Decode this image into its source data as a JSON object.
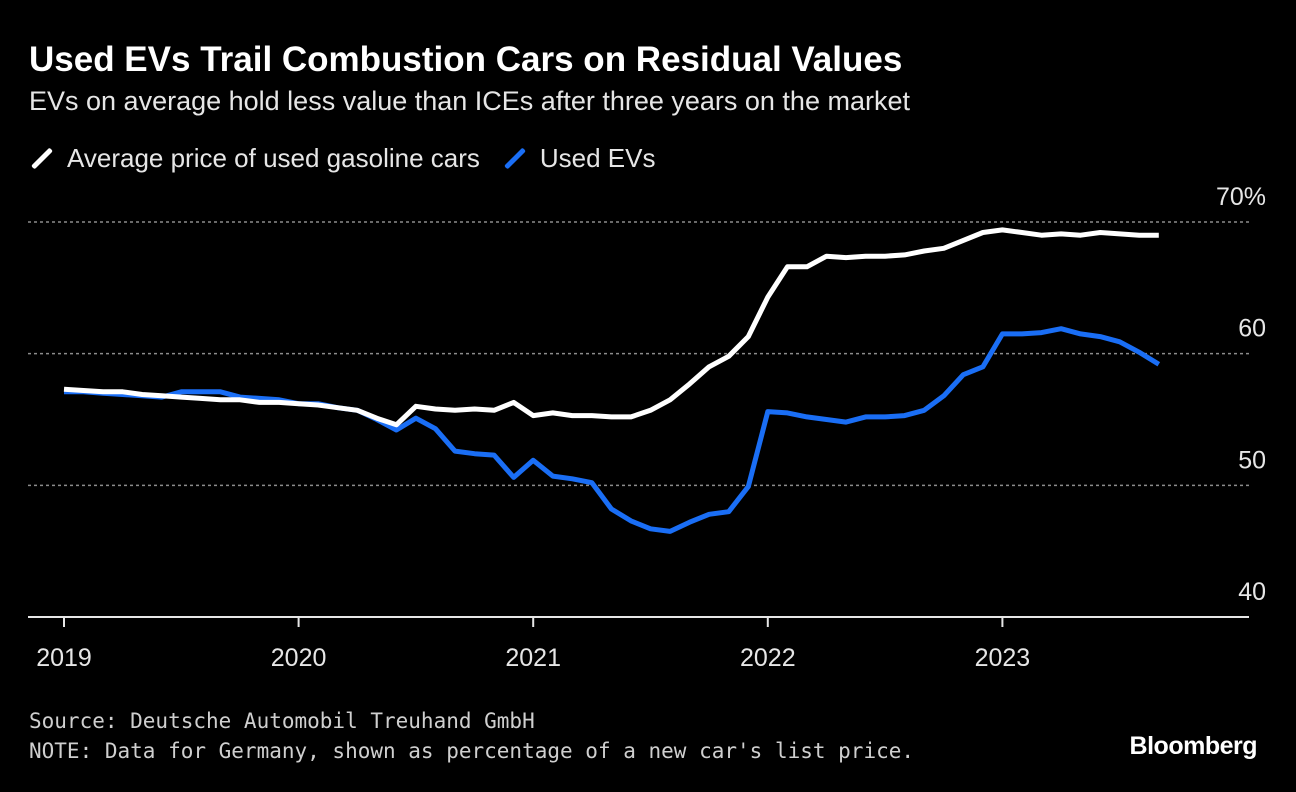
{
  "header": {
    "title": "Used EVs Trail Combustion Cars on Residual Values",
    "subtitle": "EVs on average hold less value than ICEs after three years on the market"
  },
  "legend": [
    {
      "label": "Average price of used gasoline cars",
      "color": "#ffffff"
    },
    {
      "label": "Used EVs",
      "color": "#1a6ef5"
    }
  ],
  "footer": {
    "source": "Source: Deutsche Automobil Treuhand GmbH",
    "note": "NOTE: Data for Germany, shown as percentage of a new car's list price.",
    "brand": "Bloomberg"
  },
  "chart_data": {
    "type": "line",
    "title": "Used EVs Trail Combustion Cars on Residual Values",
    "subtitle": "EVs on average hold less value than ICEs after three years on the market",
    "xlabel": "",
    "ylabel": "",
    "ylim": [
      40,
      70
    ],
    "yticks": [
      40,
      50,
      60,
      70
    ],
    "ytick_labels": [
      "40",
      "50",
      "60",
      "70%"
    ],
    "xtick_labels": [
      "2019",
      "2020",
      "2021",
      "2022",
      "2023"
    ],
    "grid": true,
    "legend_position": "top-left",
    "x": [
      "2019-01",
      "2019-02",
      "2019-03",
      "2019-04",
      "2019-05",
      "2019-06",
      "2019-07",
      "2019-08",
      "2019-09",
      "2019-10",
      "2019-11",
      "2019-12",
      "2020-01",
      "2020-02",
      "2020-03",
      "2020-04",
      "2020-05",
      "2020-06",
      "2020-07",
      "2020-08",
      "2020-09",
      "2020-10",
      "2020-11",
      "2020-12",
      "2021-01",
      "2021-02",
      "2021-03",
      "2021-04",
      "2021-05",
      "2021-06",
      "2021-07",
      "2021-08",
      "2021-09",
      "2021-10",
      "2021-11",
      "2021-12",
      "2022-01",
      "2022-02",
      "2022-03",
      "2022-04",
      "2022-05",
      "2022-06",
      "2022-07",
      "2022-08",
      "2022-09",
      "2022-10",
      "2022-11",
      "2022-12",
      "2023-01",
      "2023-02",
      "2023-03",
      "2023-04",
      "2023-05",
      "2023-06",
      "2023-07",
      "2023-08",
      "2023-09"
    ],
    "series": [
      {
        "name": "Average price of used gasoline cars",
        "color": "#ffffff",
        "values": [
          57.3,
          57.2,
          57.1,
          57.1,
          56.9,
          56.8,
          56.7,
          56.6,
          56.5,
          56.5,
          56.3,
          56.3,
          56.2,
          56.1,
          55.9,
          55.7,
          55.1,
          54.6,
          56.0,
          55.8,
          55.7,
          55.8,
          55.7,
          56.3,
          55.3,
          55.5,
          55.3,
          55.3,
          55.2,
          55.2,
          55.7,
          56.5,
          57.7,
          59.0,
          59.8,
          61.3,
          64.3,
          66.6,
          66.6,
          67.4,
          67.3,
          67.4,
          67.4,
          67.5,
          67.8,
          68.0,
          68.6,
          69.2,
          69.4,
          69.2,
          69.0,
          69.1,
          69.0,
          69.2,
          69.1,
          69.0,
          69.0
        ]
      },
      {
        "name": "Used EVs",
        "color": "#1a6ef5",
        "values": [
          57.1,
          57.1,
          57.0,
          56.9,
          56.8,
          56.7,
          57.1,
          57.1,
          57.1,
          56.7,
          56.6,
          56.5,
          56.2,
          56.2,
          55.9,
          55.7,
          55.0,
          54.2,
          55.1,
          54.3,
          52.6,
          52.4,
          52.3,
          50.6,
          51.9,
          50.7,
          50.5,
          50.2,
          48.2,
          47.3,
          46.7,
          46.5,
          47.2,
          47.8,
          48.0,
          49.9,
          55.6,
          55.5,
          55.2,
          55.0,
          54.8,
          55.2,
          55.2,
          55.3,
          55.7,
          56.8,
          58.4,
          59.0,
          61.5,
          61.5,
          61.6,
          61.9,
          61.5,
          61.3,
          60.9,
          60.1,
          59.2
        ]
      }
    ]
  }
}
